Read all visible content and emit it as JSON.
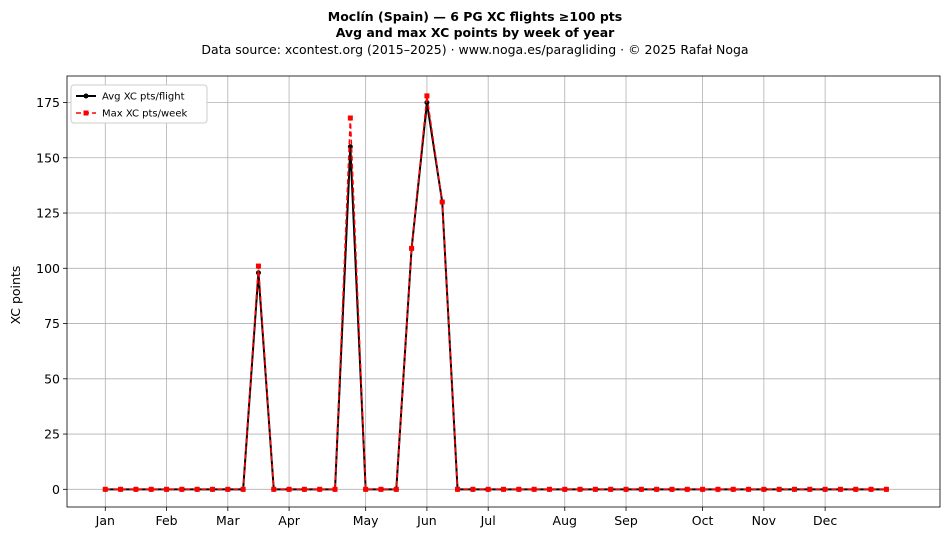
{
  "chart_data": {
    "type": "line",
    "title": "Moclín (Spain)  —  6 PG XC flights ≥100 pts",
    "subtitle": "Avg and max XC points by week of year",
    "caption": "Data source: xcontest.org (2015–2025)  ·  www.noga.es/paragliding  ·  © 2025 Rafał Noga",
    "xlabel": "",
    "ylabel": "XC points",
    "ylim": [
      -8,
      187
    ],
    "xlim": [
      -2.5,
      54.5
    ],
    "y_ticks": [
      0,
      25,
      50,
      75,
      100,
      125,
      150,
      175
    ],
    "x_ticks": [
      {
        "label": "Jan",
        "week": 0
      },
      {
        "label": "Feb",
        "week": 4
      },
      {
        "label": "Mar",
        "week": 8
      },
      {
        "label": "Apr",
        "week": 12
      },
      {
        "label": "May",
        "week": 17
      },
      {
        "label": "Jun",
        "week": 21
      },
      {
        "label": "Jul",
        "week": 25
      },
      {
        "label": "Aug",
        "week": 30
      },
      {
        "label": "Sep",
        "week": 34
      },
      {
        "label": "Oct",
        "week": 39
      },
      {
        "label": "Nov",
        "week": 43
      },
      {
        "label": "Dec",
        "week": 47
      }
    ],
    "grid": true,
    "legend_position": "top-left",
    "x": [
      0,
      1,
      2,
      3,
      4,
      5,
      6,
      7,
      8,
      9,
      10,
      11,
      12,
      13,
      14,
      15,
      16,
      17,
      18,
      19,
      20,
      21,
      22,
      23,
      24,
      25,
      26,
      27,
      28,
      29,
      30,
      31,
      32,
      33,
      34,
      35,
      36,
      37,
      38,
      39,
      40,
      41,
      42,
      43,
      44,
      45,
      46,
      47,
      48,
      49,
      50,
      51
    ],
    "series": [
      {
        "name": "Avg XC pts/flight",
        "color": "#000000",
        "values": [
          0,
          0,
          0,
          0,
          0,
          0,
          0,
          0,
          0,
          0,
          98,
          0,
          0,
          0,
          0,
          0,
          155,
          0,
          0,
          0,
          109,
          175,
          130,
          0,
          0,
          0,
          0,
          0,
          0,
          0,
          0,
          0,
          0,
          0,
          0,
          0,
          0,
          0,
          0,
          0,
          0,
          0,
          0,
          0,
          0,
          0,
          0,
          0,
          0,
          0,
          0,
          0
        ]
      },
      {
        "name": "Max XC pts/week",
        "color": "#ff0000",
        "values": [
          0,
          0,
          0,
          0,
          0,
          0,
          0,
          0,
          0,
          0,
          101,
          0,
          0,
          0,
          0,
          0,
          168,
          0,
          0,
          0,
          109,
          178,
          130,
          0,
          0,
          0,
          0,
          0,
          0,
          0,
          0,
          0,
          0,
          0,
          0,
          0,
          0,
          0,
          0,
          0,
          0,
          0,
          0,
          0,
          0,
          0,
          0,
          0,
          0,
          0,
          0,
          0
        ]
      }
    ]
  }
}
